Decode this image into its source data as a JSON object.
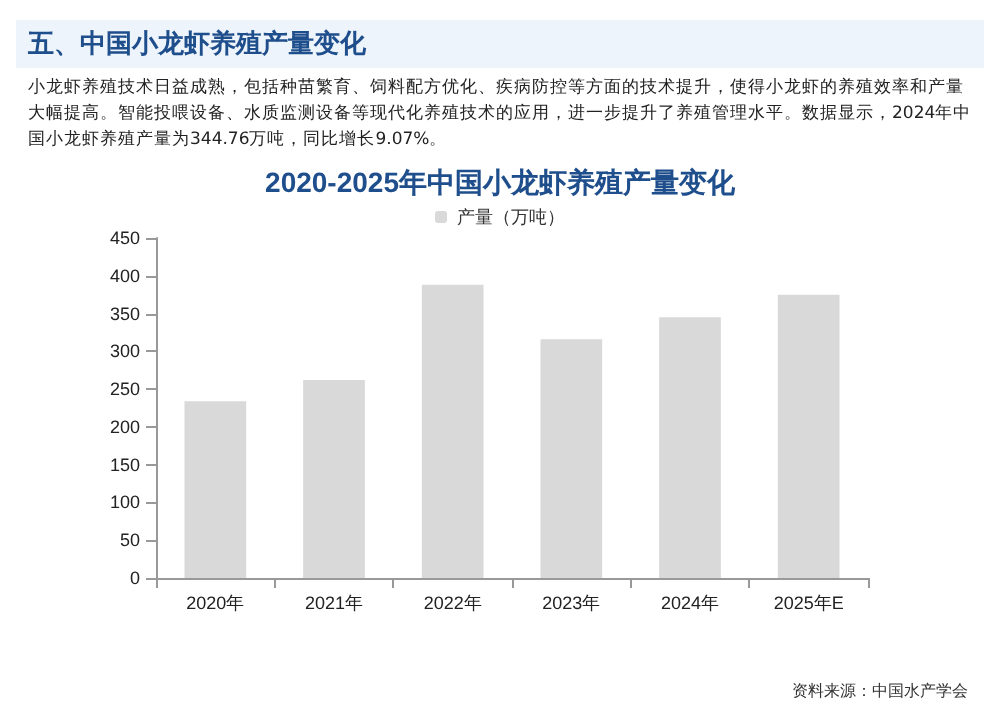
{
  "chart_data": {
    "type": "bar",
    "annotations": [
      "五、中国小龙虾养殖产量变化",
      "资料来源：中国水产学会"
    ],
    "subtitle": "小龙虾养殖技术日益成熟，包括种苗繁育、饲料配方优化、疾病防控等方面的技术提升，使得小龙虾的养殖效率和产量大幅提高。智能投喂设备、水质监测设备等现代化养殖技术的应用，进一步提升了养殖管理水平。数据显示，2024年中国小龙虾养殖产量为344.76万吨，同比增长9.07%。",
    "title": "2020-2025年中国小龙虾养殖产量变化",
    "categories": [
      "2020年",
      "2021年",
      "2022年",
      "2023年",
      "2024年",
      "2025年E"
    ],
    "series": [
      {
        "name": "产量（万吨）",
        "color": "#d9d9d9",
        "values": [
          234,
          262,
          388,
          316,
          345,
          375
        ]
      }
    ],
    "ylim": [
      0,
      450
    ],
    "yticks": [
      0,
      50,
      100,
      150,
      200,
      250,
      300,
      350,
      400,
      450
    ],
    "grid": false,
    "legend": "top"
  }
}
